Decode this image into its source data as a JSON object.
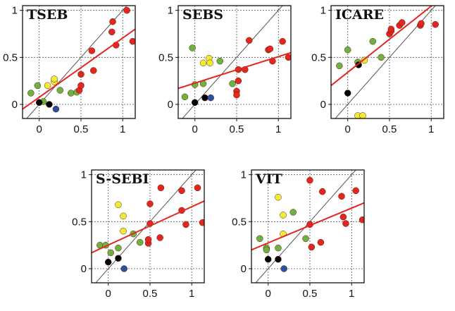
{
  "figure": {
    "background": "#ffffff"
  },
  "colors": {
    "green": "#6db33f",
    "yellow": "#f2ec34",
    "red": "#e3271f",
    "black": "#000000",
    "blue": "#2b4fa3",
    "fit_line": "#e3271f",
    "one_to_one": "#555555",
    "grid": "#555555"
  },
  "chart_data": [
    {
      "type": "scatter",
      "title": "TSEB",
      "xticks": [
        "0",
        "0.5",
        "1"
      ],
      "yticks": [
        "0",
        "0.5",
        "1"
      ],
      "xlim": [
        -0.2,
        1.15
      ],
      "ylim": [
        -0.15,
        1.05
      ],
      "grid": true,
      "one_to_one_line": true,
      "fit_line": {
        "from": [
          -0.2,
          -0.05
        ],
        "to": [
          1.15,
          0.8
        ]
      },
      "points": [
        {
          "x": -0.1,
          "y": 0.12,
          "c": "green"
        },
        {
          "x": -0.02,
          "y": 0.2,
          "c": "green"
        },
        {
          "x": 0.05,
          "y": 0.03,
          "c": "green"
        },
        {
          "x": 0.25,
          "y": 0.15,
          "c": "green"
        },
        {
          "x": 0.38,
          "y": 0.12,
          "c": "green"
        },
        {
          "x": 0.45,
          "y": 0.13,
          "c": "green"
        },
        {
          "x": 0.1,
          "y": 0.2,
          "c": "yellow"
        },
        {
          "x": 0.18,
          "y": 0.24,
          "c": "yellow"
        },
        {
          "x": 0.18,
          "y": 0.27,
          "c": "yellow"
        },
        {
          "x": 0.0,
          "y": 0.02,
          "c": "black"
        },
        {
          "x": 0.12,
          "y": 0.0,
          "c": "black"
        },
        {
          "x": 0.2,
          "y": -0.05,
          "c": "blue"
        },
        {
          "x": 0.48,
          "y": 0.15,
          "c": "red"
        },
        {
          "x": 0.5,
          "y": 0.2,
          "c": "red"
        },
        {
          "x": 0.5,
          "y": 0.32,
          "c": "red"
        },
        {
          "x": 0.63,
          "y": 0.57,
          "c": "red"
        },
        {
          "x": 0.65,
          "y": 0.36,
          "c": "red"
        },
        {
          "x": 0.87,
          "y": 0.77,
          "c": "red"
        },
        {
          "x": 0.88,
          "y": 0.88,
          "c": "red"
        },
        {
          "x": 0.92,
          "y": 0.63,
          "c": "red"
        },
        {
          "x": 1.05,
          "y": 1.0,
          "c": "red"
        },
        {
          "x": 1.12,
          "y": 0.67,
          "c": "red"
        }
      ]
    },
    {
      "type": "scatter",
      "title": "SEBS",
      "xticks": [
        "0",
        "0.5",
        "1"
      ],
      "yticks": [
        "0",
        "0.5",
        "1"
      ],
      "xlim": [
        -0.2,
        1.15
      ],
      "ylim": [
        -0.15,
        1.05
      ],
      "grid": true,
      "one_to_one_line": true,
      "fit_line": {
        "from": [
          -0.2,
          0.17
        ],
        "to": [
          1.15,
          0.55
        ]
      },
      "points": [
        {
          "x": -0.12,
          "y": 0.08,
          "c": "green"
        },
        {
          "x": -0.03,
          "y": 0.6,
          "c": "green"
        },
        {
          "x": 0.0,
          "y": 0.21,
          "c": "green"
        },
        {
          "x": 0.1,
          "y": 0.22,
          "c": "green"
        },
        {
          "x": 0.3,
          "y": 0.46,
          "c": "green"
        },
        {
          "x": 0.45,
          "y": 0.22,
          "c": "green"
        },
        {
          "x": 0.1,
          "y": 0.44,
          "c": "yellow"
        },
        {
          "x": 0.17,
          "y": 0.49,
          "c": "yellow"
        },
        {
          "x": 0.18,
          "y": 0.44,
          "c": "yellow"
        },
        {
          "x": 0.0,
          "y": 0.02,
          "c": "black"
        },
        {
          "x": 0.12,
          "y": 0.07,
          "c": "black"
        },
        {
          "x": 0.19,
          "y": 0.07,
          "c": "blue"
        },
        {
          "x": 0.5,
          "y": 0.14,
          "c": "red"
        },
        {
          "x": 0.5,
          "y": 0.1,
          "c": "red"
        },
        {
          "x": 0.52,
          "y": 0.25,
          "c": "red"
        },
        {
          "x": 0.52,
          "y": 0.37,
          "c": "red"
        },
        {
          "x": 0.6,
          "y": 0.37,
          "c": "red"
        },
        {
          "x": 0.65,
          "y": 0.68,
          "c": "red"
        },
        {
          "x": 0.88,
          "y": 0.58,
          "c": "red"
        },
        {
          "x": 0.9,
          "y": 0.59,
          "c": "red"
        },
        {
          "x": 0.93,
          "y": 0.46,
          "c": "red"
        },
        {
          "x": 1.05,
          "y": 0.67,
          "c": "red"
        },
        {
          "x": 1.12,
          "y": 0.5,
          "c": "red"
        }
      ]
    },
    {
      "type": "scatter",
      "title": "ICARE",
      "xticks": [
        "0",
        "0.5",
        "1"
      ],
      "yticks": [
        "0",
        "0.5",
        "1"
      ],
      "xlim": [
        -0.2,
        1.15
      ],
      "ylim": [
        -0.15,
        1.05
      ],
      "grid": true,
      "one_to_one_line": true,
      "fit_line": {
        "from": [
          -0.2,
          0.2
        ],
        "to": [
          1.05,
          1.08
        ]
      },
      "points": [
        {
          "x": -0.1,
          "y": 0.41,
          "c": "green"
        },
        {
          "x": 0.0,
          "y": 0.58,
          "c": "green"
        },
        {
          "x": 0.12,
          "y": 0.45,
          "c": "green"
        },
        {
          "x": 0.3,
          "y": 0.67,
          "c": "green"
        },
        {
          "x": 0.4,
          "y": 0.5,
          "c": "green"
        },
        {
          "x": 0.12,
          "y": -0.12,
          "c": "yellow"
        },
        {
          "x": 0.18,
          "y": -0.12,
          "c": "yellow"
        },
        {
          "x": 0.2,
          "y": 0.47,
          "c": "yellow"
        },
        {
          "x": 0.0,
          "y": 0.12,
          "c": "black"
        },
        {
          "x": 0.13,
          "y": 0.42,
          "c": "black"
        },
        {
          "x": 0.5,
          "y": 0.75,
          "c": "red"
        },
        {
          "x": 0.52,
          "y": 0.78,
          "c": "red"
        },
        {
          "x": 0.52,
          "y": 0.8,
          "c": "red"
        },
        {
          "x": 0.62,
          "y": 0.84,
          "c": "red"
        },
        {
          "x": 0.65,
          "y": 0.87,
          "c": "red"
        },
        {
          "x": 0.87,
          "y": 0.84,
          "c": "red"
        },
        {
          "x": 0.88,
          "y": 0.86,
          "c": "red"
        },
        {
          "x": 1.05,
          "y": 0.85,
          "c": "red"
        }
      ]
    },
    {
      "type": "scatter",
      "title": "S-SEBI",
      "xticks": [
        "0",
        "0.5",
        "1"
      ],
      "yticks": [
        "0",
        "0.5",
        "1"
      ],
      "xlim": [
        -0.2,
        1.15
      ],
      "ylim": [
        -0.15,
        1.05
      ],
      "grid": true,
      "one_to_one_line": true,
      "fit_line": {
        "from": [
          -0.2,
          0.17
        ],
        "to": [
          1.15,
          0.72
        ]
      },
      "points": [
        {
          "x": -0.1,
          "y": 0.25,
          "c": "green"
        },
        {
          "x": -0.03,
          "y": 0.25,
          "c": "green"
        },
        {
          "x": 0.03,
          "y": 0.17,
          "c": "green"
        },
        {
          "x": 0.12,
          "y": 0.22,
          "c": "green"
        },
        {
          "x": 0.3,
          "y": 0.37,
          "c": "green"
        },
        {
          "x": 0.38,
          "y": 0.28,
          "c": "green"
        },
        {
          "x": 0.12,
          "y": 0.68,
          "c": "yellow"
        },
        {
          "x": 0.18,
          "y": 0.56,
          "c": "yellow"
        },
        {
          "x": 0.18,
          "y": 0.4,
          "c": "yellow"
        },
        {
          "x": 0.0,
          "y": 0.07,
          "c": "black"
        },
        {
          "x": 0.12,
          "y": 0.11,
          "c": "black"
        },
        {
          "x": 0.19,
          "y": 0.0,
          "c": "blue"
        },
        {
          "x": 0.48,
          "y": 0.27,
          "c": "red"
        },
        {
          "x": 0.48,
          "y": 0.31,
          "c": "red"
        },
        {
          "x": 0.5,
          "y": 0.48,
          "c": "red"
        },
        {
          "x": 0.5,
          "y": 0.69,
          "c": "red"
        },
        {
          "x": 0.62,
          "y": 0.33,
          "c": "red"
        },
        {
          "x": 0.63,
          "y": 0.86,
          "c": "red"
        },
        {
          "x": 0.88,
          "y": 0.83,
          "c": "red"
        },
        {
          "x": 0.88,
          "y": 0.62,
          "c": "red"
        },
        {
          "x": 0.93,
          "y": 0.47,
          "c": "red"
        },
        {
          "x": 1.07,
          "y": 0.86,
          "c": "red"
        },
        {
          "x": 1.13,
          "y": 0.49,
          "c": "red"
        }
      ]
    },
    {
      "type": "scatter",
      "title": "VIT",
      "xticks": [
        "0",
        "0.5",
        "1"
      ],
      "yticks": [
        "0",
        "0.5",
        "1"
      ],
      "xlim": [
        -0.2,
        1.15
      ],
      "ylim": [
        -0.15,
        1.05
      ],
      "grid": true,
      "one_to_one_line": true,
      "fit_line": {
        "from": [
          -0.2,
          0.2
        ],
        "to": [
          1.15,
          0.7
        ]
      },
      "points": [
        {
          "x": -0.1,
          "y": 0.32,
          "c": "green"
        },
        {
          "x": -0.02,
          "y": 0.22,
          "c": "green"
        },
        {
          "x": -0.02,
          "y": 0.2,
          "c": "green"
        },
        {
          "x": 0.12,
          "y": 0.22,
          "c": "green"
        },
        {
          "x": 0.3,
          "y": 0.6,
          "c": "green"
        },
        {
          "x": 0.45,
          "y": 0.32,
          "c": "green"
        },
        {
          "x": 0.12,
          "y": 0.76,
          "c": "yellow"
        },
        {
          "x": 0.18,
          "y": 0.57,
          "c": "yellow"
        },
        {
          "x": 0.18,
          "y": 0.37,
          "c": "yellow"
        },
        {
          "x": 0.0,
          "y": 0.1,
          "c": "black"
        },
        {
          "x": 0.12,
          "y": 0.1,
          "c": "black"
        },
        {
          "x": 0.19,
          "y": 0.0,
          "c": "blue"
        },
        {
          "x": 0.5,
          "y": 0.94,
          "c": "red"
        },
        {
          "x": 0.5,
          "y": 0.47,
          "c": "red"
        },
        {
          "x": 0.52,
          "y": 0.23,
          "c": "red"
        },
        {
          "x": 0.63,
          "y": 0.28,
          "c": "red"
        },
        {
          "x": 0.65,
          "y": 0.82,
          "c": "red"
        },
        {
          "x": 0.88,
          "y": 0.77,
          "c": "red"
        },
        {
          "x": 0.9,
          "y": 0.55,
          "c": "red"
        },
        {
          "x": 0.93,
          "y": 0.48,
          "c": "red"
        },
        {
          "x": 1.05,
          "y": 0.83,
          "c": "red"
        },
        {
          "x": 1.13,
          "y": 0.52,
          "c": "red"
        }
      ]
    }
  ]
}
